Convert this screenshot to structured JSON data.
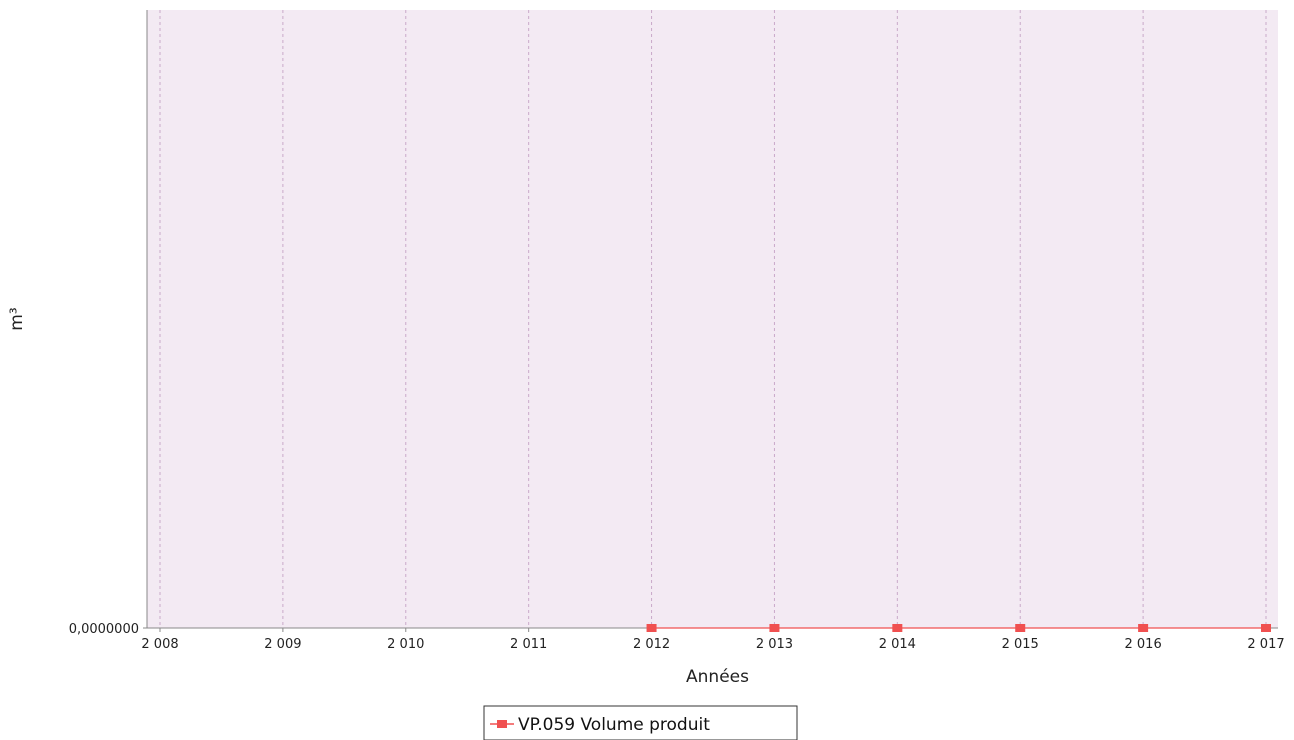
{
  "chart_data": {
    "type": "line",
    "xlabel": "Années",
    "ylabel": "m³",
    "x_tick_labels": [
      "2 008",
      "2 009",
      "2 010",
      "2 011",
      "2 012",
      "2 013",
      "2 014",
      "2 015",
      "2 016",
      "2 017"
    ],
    "y_tick_labels": [
      "0,0000000"
    ],
    "xlim": [
      2008,
      2017
    ],
    "ylim": [
      0,
      1
    ],
    "grid": "vertical dashed",
    "legend_position": "bottom",
    "series": [
      {
        "name": "VP.059 Volume produit",
        "color": "#f05050",
        "x": [
          2012,
          2013,
          2014,
          2015,
          2016,
          2017
        ],
        "y": [
          0,
          0,
          0,
          0,
          0,
          0
        ]
      }
    ],
    "colors": {
      "plot_background": "#f3eaf3",
      "grid": "#c9a9c9",
      "axis": "#888888"
    }
  }
}
